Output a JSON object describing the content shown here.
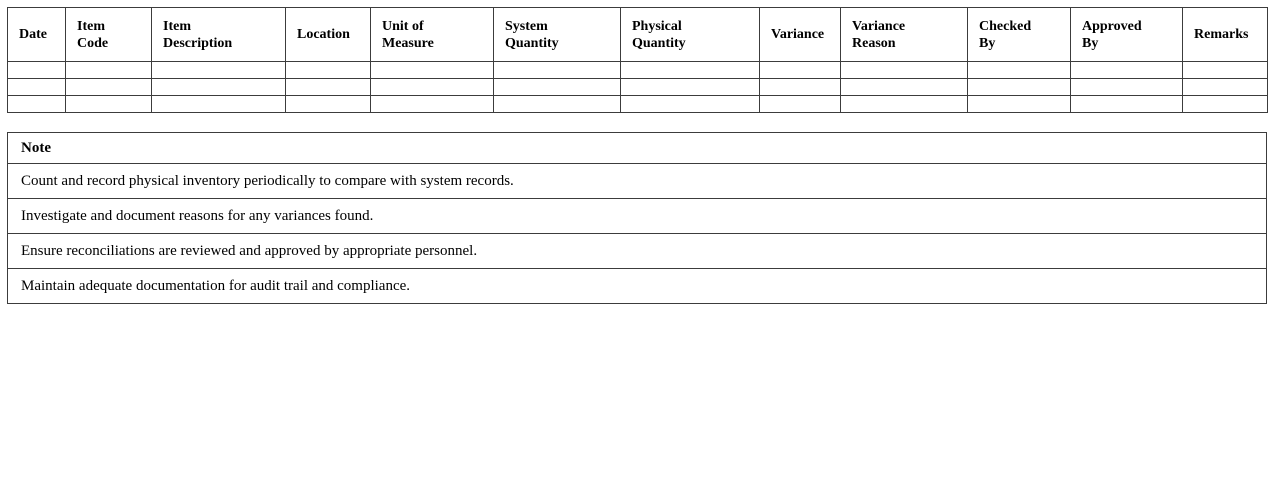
{
  "document": {
    "background_color": "#ffffff",
    "text_color": "#000000",
    "border_color": "#3c3c3c"
  },
  "inventory_table": {
    "headers": [
      "Date",
      "Item\nCode",
      "Item\nDescription",
      "Location",
      "Unit of\nMeasure",
      "System\nQuantity",
      "Physical\nQuantity",
      "Variance",
      "Variance\nReason",
      "Checked\nBy",
      "Approved\nBy",
      "Remarks"
    ],
    "empty_row_count": 3
  },
  "note_table": {
    "title": "Note",
    "notes": [
      "Count and record physical inventory periodically to compare with system records.",
      "Investigate and document reasons for any variances found.",
      "Ensure reconciliations are reviewed and approved by appropriate personnel.",
      "Maintain adequate documentation for audit trail and compliance."
    ]
  }
}
